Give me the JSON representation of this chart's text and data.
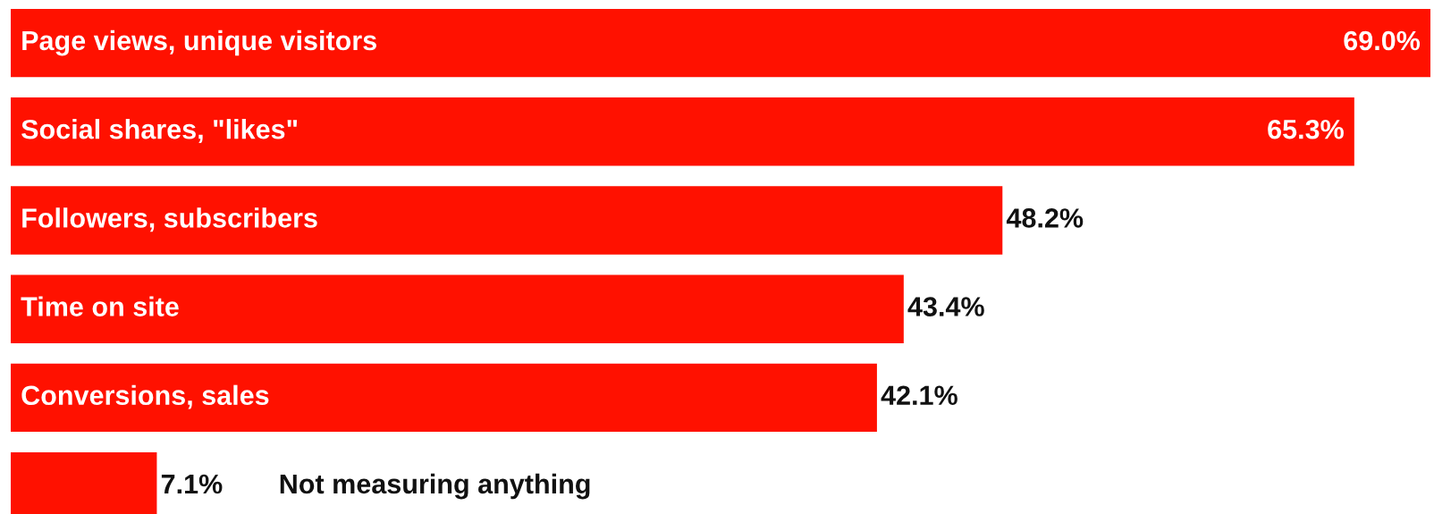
{
  "chart_data": {
    "type": "bar",
    "orientation": "horizontal",
    "categories": [
      "Page views, unique visitors",
      "Social shares, \"likes\"",
      "Followers, subscribers",
      "Time on site",
      "Conversions, sales",
      "Not measuring anything"
    ],
    "values": [
      69.0,
      65.3,
      48.2,
      43.4,
      42.1,
      7.1
    ],
    "value_labels": [
      "69.0%",
      "65.3%",
      "48.2%",
      "43.4%",
      "42.1%",
      "7.1%"
    ],
    "color": "#ff1100"
  }
}
